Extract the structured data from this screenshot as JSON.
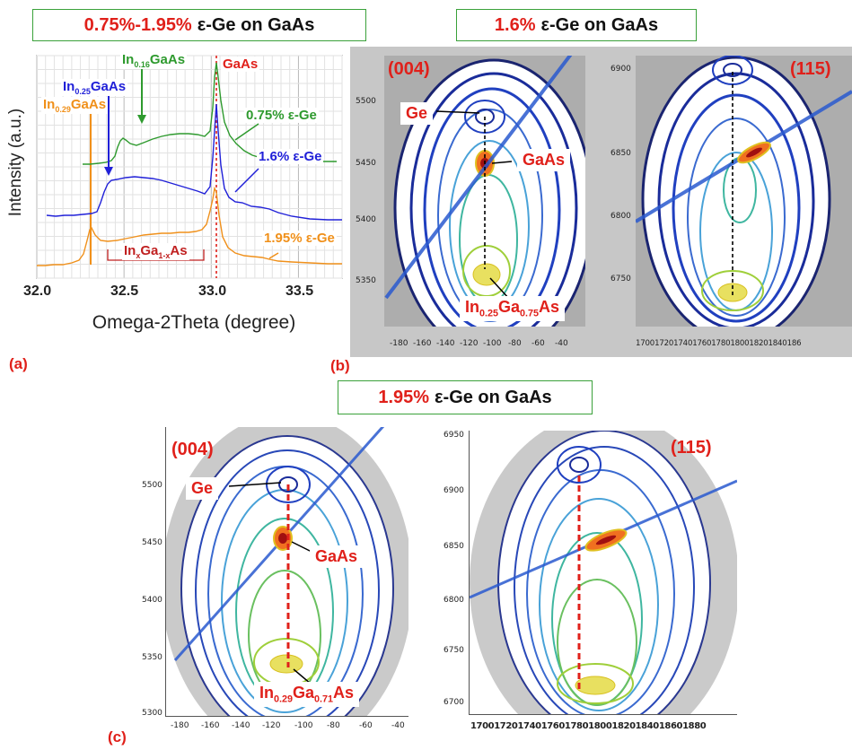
{
  "titles": {
    "a": {
      "red": "0.75%-1.95%",
      "rest": "ε-Ge on GaAs"
    },
    "b": {
      "red": "1.6%",
      "rest": "ε-Ge on GaAs"
    },
    "c": {
      "red": "1.95%",
      "rest": "ε-Ge on GaAs"
    }
  },
  "panel_letters": {
    "a": "(a)",
    "b": "(b)",
    "c": "(c)"
  },
  "chart_data": [
    {
      "type": "line",
      "ylabel": "Intensity (a.u.)",
      "xlabel": "Omega-2Theta (degree)",
      "xlim": [
        32.0,
        33.75
      ],
      "xticks": [
        "32.0",
        "32.5",
        "33.0",
        "33.5"
      ],
      "grid": true,
      "series": [
        {
          "name": "0.75% ε-Ge",
          "color": "#2e9a2e"
        },
        {
          "name": "1.6% ε-Ge",
          "color": "#2020d8"
        },
        {
          "name": "1.95% ε-Ge",
          "color": "#f0901a"
        }
      ],
      "annotations": {
        "gaas": "GaAs",
        "in016": {
          "pre": "In",
          "sub1": "0.16",
          "post": "GaAs"
        },
        "in025": {
          "pre": "In",
          "sub1": "0.25",
          "post": "GaAs"
        },
        "in029": {
          "pre": "In",
          "sub1": "0.29",
          "post": "GaAs"
        },
        "inx": {
          "a": "In",
          "b": "x",
          "c": "Ga",
          "d": "1-x",
          "e": "As"
        }
      }
    }
  ],
  "maps": {
    "b004": {
      "reflection": "(004)",
      "yticks": [
        "5500",
        "5450",
        "5400",
        "5350"
      ],
      "xticks": [
        "-180",
        "-160",
        "-140",
        "-120",
        "-100",
        "-80",
        "-60",
        "-40"
      ],
      "labels": {
        "ge": "Ge",
        "gaas": "GaAs",
        "in_a": "In",
        "in_b": "0.25",
        "in_c": "Ga",
        "in_d": "0.75",
        "in_e": "As"
      }
    },
    "b115": {
      "reflection": "(115)",
      "yticks": [
        "6900",
        "6850",
        "6800",
        "6750"
      ],
      "xticks": "17001720174017601780180018201840186"
    },
    "c004": {
      "reflection": "(004)",
      "yticks": [
        "5500",
        "5450",
        "5400",
        "5350",
        "5300"
      ],
      "xticks": [
        "-180",
        "-160",
        "-140",
        "-120",
        "-100",
        "-80",
        "-60",
        "-40"
      ],
      "labels": {
        "ge": "Ge",
        "gaas": "GaAs",
        "in_a": "In",
        "in_b": "0.29",
        "in_c": "Ga",
        "in_d": "0.71",
        "in_e": "As"
      }
    },
    "c115": {
      "reflection": "(115)",
      "yticks": [
        "6950",
        "6900",
        "6850",
        "6800",
        "6750",
        "6700"
      ],
      "xticks": "1700172017401760178018001820184018601880"
    }
  }
}
